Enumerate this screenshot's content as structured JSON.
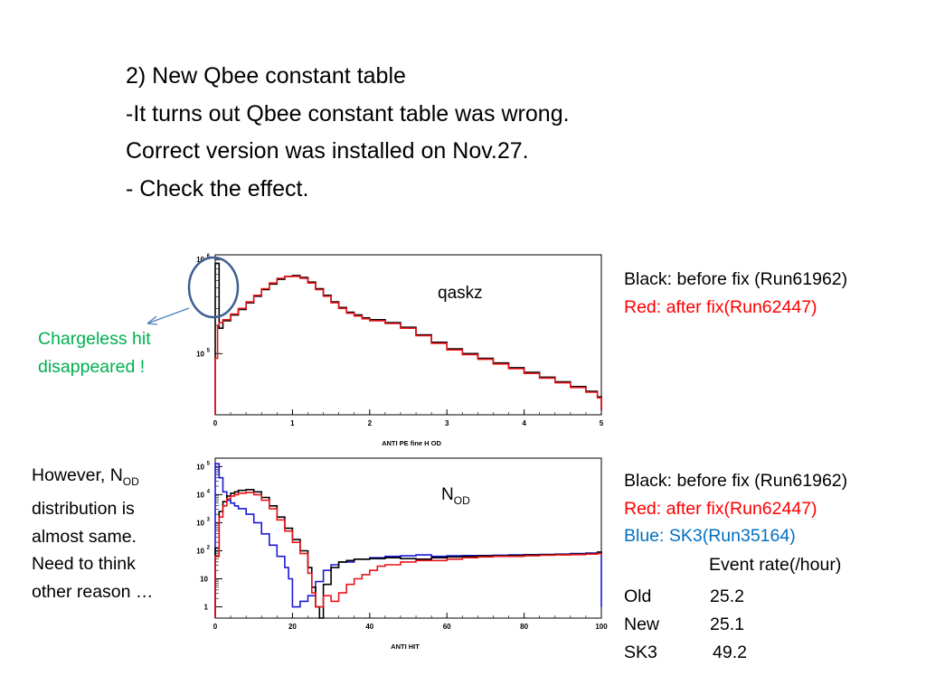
{
  "slide": {
    "heading": [
      "2) New Qbee constant table",
      "-It turns out Qbee constant table was wrong.",
      "Correct version was installed on Nov.27.",
      "- Check the effect."
    ],
    "note_chargeless": [
      "Chargeless hit",
      "disappeared !"
    ],
    "note_however": {
      "line1_prefix": "However, N",
      "line1_sub": "OD",
      "lines": [
        "distribution is",
        "almost same.",
        "Need to think",
        "other reason …"
      ]
    },
    "legend_top": {
      "black": "Black: before fix (Run61962)",
      "red": "Red: after fix(Run62447)"
    },
    "legend_bottom": {
      "black": "Black: before fix (Run61962)",
      "red": "Red: after fix(Run62447)",
      "blue": "Blue: SK3(Run35164)"
    },
    "event_rate": {
      "header": "Event rate(/hour)",
      "rows": [
        {
          "label": "Old",
          "value": "25.2"
        },
        {
          "label": "New",
          "value": "25.1"
        },
        {
          "label": "SK3",
          "value": "49.2"
        }
      ]
    },
    "colors": {
      "black": "#000000",
      "red": "#e8141a",
      "blue": "#1a1ad6",
      "green_note": "#00b050",
      "legend_blue": "#0070c0",
      "circle": "#3f5f8f",
      "arrow": "#4f7fbf"
    }
  },
  "chart_data": [
    {
      "type": "line",
      "title": "qaskz",
      "xlabel": "ANTI PE fine H OD",
      "ylabel": "",
      "log_y": true,
      "xlim": [
        0,
        5
      ],
      "ylim_log10": [
        4.35,
        6.05
      ],
      "x_ticks": [
        {
          "v": 0,
          "label": "0"
        },
        {
          "v": 1,
          "label": "1"
        },
        {
          "v": 2,
          "label": "2"
        },
        {
          "v": 3,
          "label": "3"
        },
        {
          "v": 4,
          "label": "4"
        },
        {
          "v": 5,
          "label": "5"
        }
      ],
      "y_ticks": [
        {
          "v": 5,
          "base": "10",
          "exp": "5"
        },
        {
          "v": 6,
          "base": "10",
          "exp": "6"
        }
      ],
      "series": [
        {
          "color": "black",
          "x": [
            0,
            0.05,
            0.1,
            0.2,
            0.3,
            0.4,
            0.5,
            0.6,
            0.7,
            0.8,
            0.9,
            1.0,
            1.1,
            1.2,
            1.3,
            1.4,
            1.5,
            1.6,
            1.7,
            1.8,
            1.9,
            2.0,
            2.2,
            2.4,
            2.6,
            2.8,
            3.0,
            3.2,
            3.4,
            3.6,
            3.8,
            4.0,
            4.2,
            4.4,
            4.6,
            4.8,
            4.95,
            5.0
          ],
          "log10y": [
            5.96,
            5.27,
            5.35,
            5.41,
            5.47,
            5.54,
            5.61,
            5.68,
            5.74,
            5.79,
            5.82,
            5.83,
            5.81,
            5.76,
            5.69,
            5.62,
            5.55,
            5.49,
            5.44,
            5.41,
            5.38,
            5.36,
            5.33,
            5.28,
            5.2,
            5.12,
            5.05,
            5.0,
            4.95,
            4.9,
            4.85,
            4.8,
            4.75,
            4.7,
            4.65,
            4.6,
            4.54,
            4.4
          ]
        },
        {
          "color": "red",
          "x": [
            0,
            0.03,
            0.05,
            0.1,
            0.2,
            0.3,
            0.4,
            0.5,
            0.6,
            0.7,
            0.8,
            0.9,
            1.0,
            1.1,
            1.2,
            1.3,
            1.4,
            1.5,
            1.6,
            1.7,
            1.8,
            1.9,
            2.0,
            2.2,
            2.4,
            2.6,
            2.8,
            3.0,
            3.2,
            3.4,
            3.6,
            3.8,
            4.0,
            4.2,
            4.4,
            4.6,
            4.8,
            4.95,
            5.0
          ],
          "log10y": [
            4.95,
            5.3,
            5.33,
            5.36,
            5.42,
            5.48,
            5.55,
            5.62,
            5.69,
            5.75,
            5.8,
            5.82,
            5.82,
            5.8,
            5.75,
            5.68,
            5.61,
            5.54,
            5.48,
            5.43,
            5.4,
            5.37,
            5.35,
            5.32,
            5.27,
            5.19,
            5.11,
            5.04,
            4.99,
            4.94,
            4.89,
            4.84,
            4.79,
            4.74,
            4.69,
            4.64,
            4.59,
            4.53,
            4.4
          ]
        }
      ]
    },
    {
      "type": "line",
      "title": "",
      "xlabel": "ANTI HIT",
      "ylabel": "",
      "log_y": true,
      "xlim": [
        0,
        100
      ],
      "ylim_log10": [
        -0.4,
        5.3
      ],
      "x_ticks": [
        {
          "v": 0,
          "label": "0"
        },
        {
          "v": 20,
          "label": "20"
        },
        {
          "v": 40,
          "label": "40"
        },
        {
          "v": 60,
          "label": "60"
        },
        {
          "v": 80,
          "label": "80"
        },
        {
          "v": 100,
          "label": "100"
        }
      ],
      "y_ticks": [
        {
          "v": 0,
          "base": "1",
          "exp": ""
        },
        {
          "v": 1,
          "base": "10",
          "exp": ""
        },
        {
          "v": 2,
          "base": "10",
          "exp": "2"
        },
        {
          "v": 3,
          "base": "10",
          "exp": "3"
        },
        {
          "v": 4,
          "base": "10",
          "exp": "4"
        },
        {
          "v": 5,
          "base": "10",
          "exp": "5"
        }
      ],
      "series": [
        {
          "color": "blue",
          "x": [
            0,
            1,
            2,
            3,
            4,
            5,
            6,
            8,
            10,
            12,
            14,
            16,
            18,
            19,
            20,
            22,
            24,
            26,
            28,
            30,
            32,
            34,
            36,
            40,
            44,
            48,
            52,
            56,
            60,
            64,
            68,
            72,
            76,
            80,
            84,
            88,
            92,
            96,
            99,
            100
          ],
          "log10y": [
            5.1,
            4.6,
            4.1,
            3.8,
            3.7,
            3.6,
            3.5,
            3.3,
            3.0,
            2.6,
            2.2,
            1.8,
            1.4,
            1.0,
            0.0,
            0.2,
            0.4,
            0.9,
            1.3,
            1.5,
            1.6,
            1.6,
            1.7,
            1.75,
            1.8,
            1.82,
            1.85,
            1.8,
            1.82,
            1.83,
            1.83,
            1.84,
            1.85,
            1.86,
            1.87,
            1.88,
            1.9,
            1.92,
            1.95,
            0.0
          ]
        },
        {
          "color": "black",
          "x": [
            0,
            1,
            2,
            3,
            4,
            5,
            6,
            8,
            10,
            12,
            14,
            16,
            18,
            20,
            22,
            24,
            25,
            26,
            27,
            28,
            30,
            32,
            34,
            36,
            40,
            44,
            48,
            52,
            56,
            60,
            64,
            68,
            72,
            76,
            80,
            84,
            88,
            92,
            96,
            99,
            100
          ],
          "log10y": [
            2.1,
            3.4,
            3.75,
            3.95,
            4.05,
            4.1,
            4.15,
            4.18,
            4.1,
            3.9,
            3.6,
            3.2,
            2.8,
            2.4,
            2.0,
            1.4,
            0.7,
            0.0,
            -0.4,
            0.8,
            1.4,
            1.6,
            1.65,
            1.7,
            1.72,
            1.75,
            1.72,
            1.7,
            1.75,
            1.78,
            1.8,
            1.82,
            1.82,
            1.83,
            1.85,
            1.86,
            1.87,
            1.88,
            1.9,
            1.95,
            1.9
          ]
        },
        {
          "color": "red",
          "x": [
            0,
            1,
            2,
            3,
            4,
            5,
            6,
            8,
            10,
            12,
            14,
            16,
            18,
            20,
            22,
            24,
            25,
            26,
            28,
            30,
            32,
            34,
            36,
            38,
            40,
            42,
            44,
            48,
            52,
            56,
            60,
            64,
            68,
            72,
            76,
            80,
            84,
            88,
            92,
            96,
            99,
            100
          ],
          "log10y": [
            1.8,
            3.2,
            3.6,
            3.85,
            3.95,
            4.0,
            4.05,
            4.08,
            4.0,
            3.8,
            3.5,
            3.1,
            2.7,
            2.3,
            1.9,
            1.2,
            0.5,
            0.0,
            0.4,
            0.2,
            0.5,
            0.8,
            1.0,
            1.15,
            1.3,
            1.45,
            1.5,
            1.6,
            1.65,
            1.65,
            1.7,
            1.75,
            1.78,
            1.8,
            1.8,
            1.82,
            1.84,
            1.85,
            1.86,
            1.88,
            1.9,
            1.85
          ]
        }
      ]
    }
  ]
}
